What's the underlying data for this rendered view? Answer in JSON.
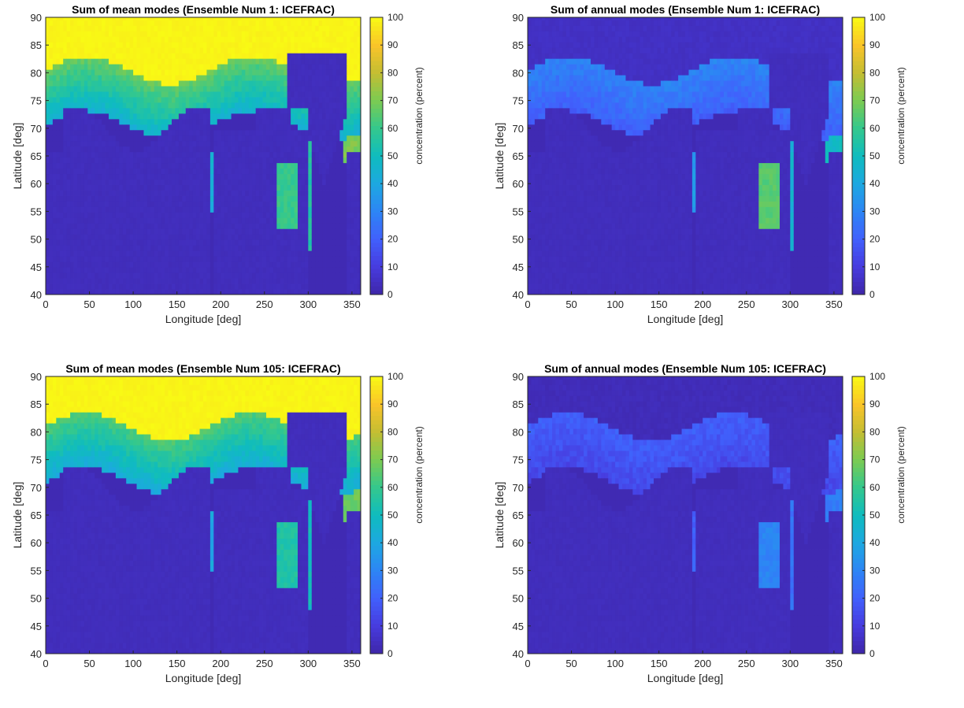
{
  "chart_data": [
    {
      "type": "heatmap",
      "title": "Sum of mean modes (Ensemble Num 1: ICEFRAC)",
      "xlabel": "Longitude [deg]",
      "ylabel": "Latitude [deg]",
      "xlim": [
        0,
        360
      ],
      "ylim": [
        40,
        90
      ],
      "xticks": [
        "0",
        "50",
        "100",
        "150",
        "200",
        "250",
        "300",
        "350"
      ],
      "yticks": [
        "40",
        "45",
        "50",
        "55",
        "60",
        "65",
        "70",
        "75",
        "80",
        "85",
        "90"
      ],
      "colorbar": {
        "label": "concentration (percent)",
        "min": 0,
        "max": 100,
        "ticks": [
          "0",
          "10",
          "20",
          "30",
          "40",
          "50",
          "60",
          "70",
          "80",
          "90",
          "100"
        ],
        "colormap": "parula"
      },
      "field": {
        "pole_value": 100,
        "ice_edge_lat": 80.5,
        "mid_value": 68,
        "channel_value": 55,
        "sea_value": 42,
        "hudson_value": 60,
        "greenland_edge": 70
      }
    },
    {
      "type": "heatmap",
      "title": "Sum of annual modes (Ensemble Num 1: ICEFRAC)",
      "xlabel": "Longitude [deg]",
      "ylabel": "Latitude [deg]",
      "xlim": [
        0,
        360
      ],
      "ylim": [
        40,
        90
      ],
      "xticks": [
        "0",
        "50",
        "100",
        "150",
        "200",
        "250",
        "300",
        "350"
      ],
      "yticks": [
        "40",
        "45",
        "50",
        "55",
        "60",
        "65",
        "70",
        "75",
        "80",
        "85",
        "90"
      ],
      "colorbar": {
        "label": "concentration (percent)",
        "min": 0,
        "max": 100,
        "ticks": [
          "0",
          "10",
          "20",
          "30",
          "40",
          "50",
          "60",
          "70",
          "80",
          "90",
          "100"
        ],
        "colormap": "parula"
      },
      "field": {
        "pole_value": 6,
        "ice_edge_lat": 80.5,
        "mid_value": 30,
        "channel_value": 45,
        "sea_value": 58,
        "hudson_value": 65,
        "greenland_edge": 48
      }
    },
    {
      "type": "heatmap",
      "title": "Sum of mean modes (Ensemble Num 105: ICEFRAC)",
      "xlabel": "Longitude [deg]",
      "ylabel": "Latitude [deg]",
      "xlim": [
        0,
        360
      ],
      "ylim": [
        40,
        90
      ],
      "xticks": [
        "0",
        "50",
        "100",
        "150",
        "200",
        "250",
        "300",
        "350"
      ],
      "yticks": [
        "40",
        "45",
        "50",
        "55",
        "60",
        "65",
        "70",
        "75",
        "80",
        "85",
        "90"
      ],
      "colorbar": {
        "label": "concentration (percent)",
        "min": 0,
        "max": 100,
        "ticks": [
          "0",
          "10",
          "20",
          "30",
          "40",
          "50",
          "60",
          "70",
          "80",
          "90",
          "100"
        ],
        "colormap": "parula"
      },
      "field": {
        "pole_value": 100,
        "ice_edge_lat": 81,
        "mid_value": 64,
        "channel_value": 50,
        "sea_value": 38,
        "hudson_value": 55,
        "greenland_edge": 68
      }
    },
    {
      "type": "heatmap",
      "title": "Sum of annual modes (Ensemble Num 105: ICEFRAC)",
      "xlabel": "Longitude [deg]",
      "ylabel": "Latitude [deg]",
      "xlim": [
        0,
        360
      ],
      "ylim": [
        40,
        90
      ],
      "xticks": [
        "0",
        "50",
        "100",
        "150",
        "200",
        "250",
        "300",
        "350"
      ],
      "yticks": [
        "40",
        "45",
        "50",
        "55",
        "60",
        "65",
        "70",
        "75",
        "80",
        "85",
        "90"
      ],
      "colorbar": {
        "label": "concentration (percent)",
        "min": 0,
        "max": 100,
        "ticks": [
          "0",
          "10",
          "20",
          "30",
          "40",
          "50",
          "60",
          "70",
          "80",
          "90",
          "100"
        ],
        "colormap": "parula"
      },
      "field": {
        "pole_value": 4,
        "ice_edge_lat": 81,
        "mid_value": 20,
        "channel_value": 25,
        "sea_value": 28,
        "hudson_value": 30,
        "greenland_edge": 28
      }
    }
  ]
}
